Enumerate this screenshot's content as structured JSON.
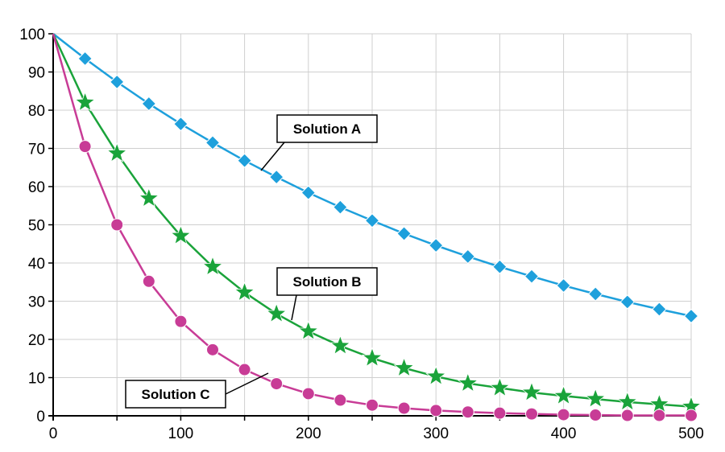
{
  "chart_data": {
    "type": "line",
    "title": "",
    "xlabel": "",
    "ylabel": "",
    "xlim": [
      0,
      500
    ],
    "ylim": [
      0,
      100
    ],
    "x_ticks": [
      0,
      100,
      200,
      300,
      400,
      500
    ],
    "y_ticks": [
      0,
      10,
      20,
      30,
      40,
      50,
      60,
      70,
      80,
      90,
      100
    ],
    "grid": true,
    "x": [
      0,
      25,
      50,
      75,
      100,
      125,
      150,
      175,
      200,
      225,
      250,
      275,
      300,
      325,
      350,
      375,
      400,
      425,
      450,
      475,
      500
    ],
    "series": [
      {
        "name": "Solution A",
        "color": "#1ea0dc",
        "marker": "diamond",
        "values": [
          100,
          93.5,
          87.4,
          81.7,
          76.4,
          71.5,
          66.8,
          62.5,
          58.4,
          54.6,
          51.1,
          47.7,
          44.6,
          41.7,
          39.0,
          36.5,
          34.1,
          31.9,
          29.8,
          27.9,
          26.1
        ]
      },
      {
        "name": "Solution B",
        "color": "#1aa33a",
        "marker": "star",
        "values": [
          100,
          82.0,
          68.7,
          56.9,
          47.1,
          39.0,
          32.3,
          26.7,
          22.1,
          18.3,
          15.1,
          12.5,
          10.3,
          8.5,
          7.3,
          6.1,
          5.2,
          4.4,
          3.6,
          3.0,
          2.4
        ]
      },
      {
        "name": "Solution C",
        "color": "#c83c96",
        "marker": "circle",
        "values": [
          100,
          70.5,
          50.0,
          35.2,
          24.7,
          17.3,
          12.1,
          8.4,
          5.8,
          4.1,
          2.8,
          2.0,
          1.4,
          1.0,
          0.7,
          0.5,
          0.3,
          0.2,
          0.1,
          0.1,
          0.1
        ]
      }
    ],
    "annotations": [
      {
        "text": "Solution A",
        "series": 0
      },
      {
        "text": "Solution B",
        "series": 1
      },
      {
        "text": "Solution C",
        "series": 2
      }
    ]
  }
}
